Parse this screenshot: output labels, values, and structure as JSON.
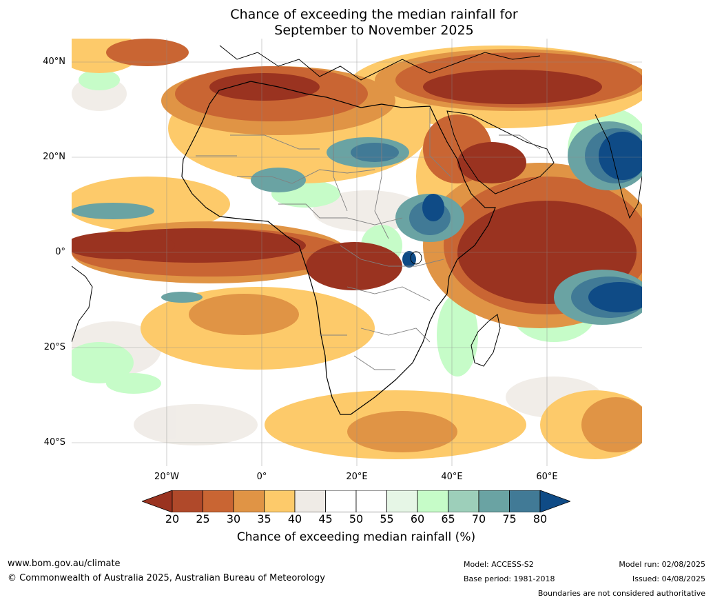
{
  "title": {
    "line1": "Chance of exceeding the median rainfall for",
    "line2": "September to November 2025"
  },
  "map": {
    "region": "Africa",
    "lat_labels": [
      "40°N",
      "20°N",
      "0°",
      "20°S",
      "40°S"
    ],
    "lon_labels": [
      "20°W",
      "0°",
      "20°E",
      "40°E",
      "60°E"
    ],
    "lat_values": [
      40,
      20,
      0,
      -20,
      -40
    ],
    "lon_values": [
      -20,
      0,
      20,
      40,
      60
    ],
    "extent": {
      "lon_min": -40,
      "lon_max": 80,
      "lat_min": -45,
      "lat_max": 45
    }
  },
  "colorbar": {
    "ticks": [
      "20",
      "25",
      "30",
      "35",
      "40",
      "45",
      "50",
      "55",
      "60",
      "65",
      "70",
      "75",
      "80"
    ],
    "colors": [
      "#9a3320",
      "#b0492a",
      "#c96533",
      "#e09445",
      "#fdca6a",
      "#efebe6",
      "#ffffff",
      "#ffffff",
      "#e6f6e6",
      "#c6fcc8",
      "#9dcfba",
      "#6aa3a3",
      "#417a96",
      "#0f4b86"
    ],
    "label": "Chance of exceeding median rainfall (%)"
  },
  "footer": {
    "website": "www.bom.gov.au/climate",
    "copyright": "© Commonwealth of Australia 2025, Australian Bureau of Meteorology",
    "model": "Model: ACCESS-S2",
    "base_period": "Base period: 1981-2018",
    "model_run": "Model run: 02/08/2025",
    "issued": "Issued: 04/08/2025",
    "disclaimer": "Boundaries are not considered authoritative"
  }
}
